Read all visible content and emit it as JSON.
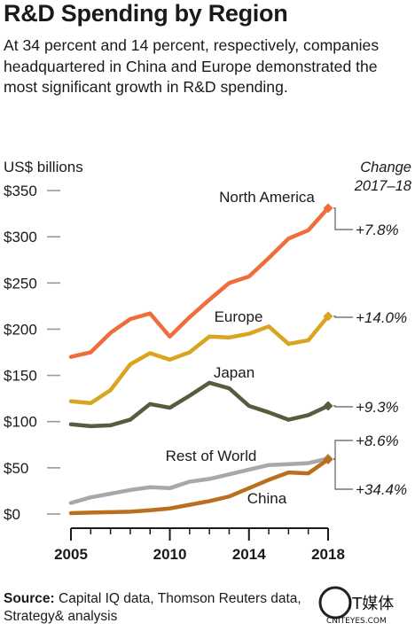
{
  "title": "R&D Spending by Region",
  "subtitle": "At 34 percent and 14 percent, respectively, companies headquartered in China and Europe demonstrated the most significant growth in R&D spending.",
  "source": {
    "label": "Source:",
    "text": " Capital IQ data, Thomson Reuters data, Strategy& analysis"
  },
  "watermark": {
    "text": "IT媒体",
    "sub": "CNITEYES.COM"
  },
  "chart_data": {
    "type": "line",
    "ylabel": "US$ billions",
    "change_header": [
      "Change",
      "2017–18"
    ],
    "ylim": [
      0,
      350
    ],
    "yticks": [
      {
        "value": 0,
        "label": "$0"
      },
      {
        "value": 50,
        "label": "$50"
      },
      {
        "value": 100,
        "label": "$100"
      },
      {
        "value": 150,
        "label": "$150"
      },
      {
        "value": 200,
        "label": "$200"
      },
      {
        "value": 250,
        "label": "$250"
      },
      {
        "value": 300,
        "label": "$300"
      },
      {
        "value": 350,
        "label": "$350"
      }
    ],
    "xlim": [
      2005,
      2018
    ],
    "xticks": [
      {
        "value": 2005,
        "label": "2005"
      },
      {
        "value": 2010,
        "label": "2010"
      },
      {
        "value": 2014,
        "label": "2014"
      },
      {
        "value": 2018,
        "label": "2018"
      }
    ],
    "x": [
      2005,
      2006,
      2007,
      2008,
      2009,
      2010,
      2011,
      2012,
      2013,
      2014,
      2015,
      2016,
      2017,
      2018
    ],
    "series": [
      {
        "name": "North America",
        "color": "#ef6d3a",
        "change": "+7.8%",
        "values": [
          170,
          175,
          196,
          211,
          217,
          192,
          213,
          232,
          250,
          257,
          277,
          298,
          307,
          331
        ]
      },
      {
        "name": "Europe",
        "color": "#d9a520",
        "change": "+14.0%",
        "values": [
          122,
          120,
          134,
          162,
          174,
          167,
          175,
          192,
          191,
          195,
          203,
          184,
          188,
          214
        ]
      },
      {
        "name": "Japan",
        "color": "#5a5a3e",
        "change": "+9.3%",
        "values": [
          97,
          95,
          96,
          102,
          119,
          115,
          128,
          142,
          136,
          117,
          110,
          102,
          107,
          117
        ]
      },
      {
        "name": "Rest of World",
        "color": "#a8a8a8",
        "change": "+8.6%",
        "values": [
          12,
          18,
          22,
          26,
          29,
          28,
          35,
          38,
          43,
          48,
          53,
          54,
          55,
          60
        ]
      },
      {
        "name": "China",
        "color": "#b96f1e",
        "change": "+34.4%",
        "values": [
          1,
          1.5,
          2,
          2.5,
          4,
          6,
          10,
          14,
          19,
          28,
          37,
          45,
          44,
          59
        ]
      }
    ]
  }
}
